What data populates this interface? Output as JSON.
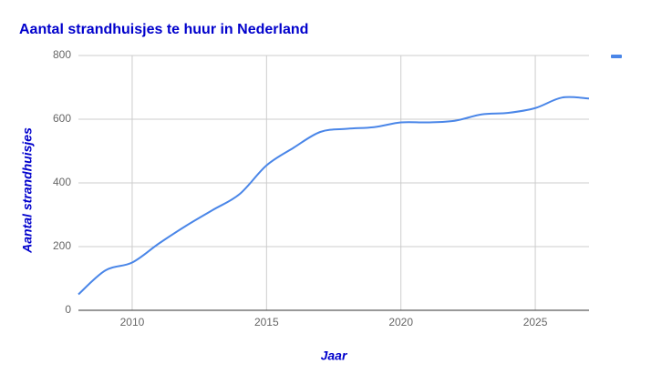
{
  "chart_data": {
    "type": "line",
    "title": "Aantal strandhuisjes te huur in Nederland",
    "x_label": "Jaar",
    "y_label": "Aantal strandhuisjes",
    "x": [
      2008,
      2009,
      2010,
      2011,
      2012,
      2013,
      2014,
      2015,
      2016,
      2017,
      2018,
      2019,
      2020,
      2021,
      2022,
      2023,
      2024,
      2025,
      2026,
      2027
    ],
    "series": [
      {
        "color": "#4a86e8",
        "values": [
          50,
          125,
          150,
          210,
          265,
          315,
          365,
          455,
          510,
          560,
          570,
          575,
          590,
          590,
          595,
          615,
          620,
          635,
          668,
          665
        ]
      }
    ],
    "xlim": [
      2008,
      2027
    ],
    "xticks": [
      2010,
      2015,
      2020,
      2025
    ],
    "ylim": [
      0,
      800
    ],
    "yticks": [
      0,
      200,
      400,
      600,
      800
    ],
    "grid": true,
    "legend": "top-right"
  }
}
